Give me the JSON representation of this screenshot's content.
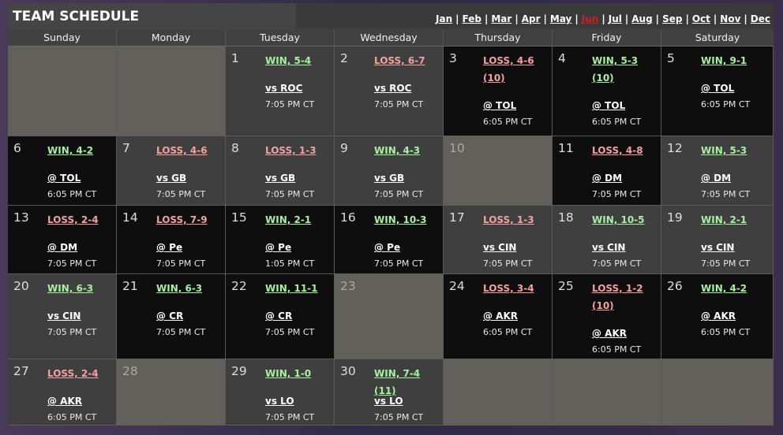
{
  "title": "TEAM SCHEDULE",
  "months": [
    "Jan",
    "Feb",
    "Mar",
    "Apr",
    "May",
    "Jun",
    "Jul",
    "Aug",
    "Sep",
    "Oct",
    "Nov",
    "Dec"
  ],
  "current_month": "Jun",
  "colors": {
    "win": "#a6f0a0",
    "loss": "#f5a0a0",
    "current_month": "#cc1f1f"
  },
  "weekdays": [
    "Sunday",
    "Monday",
    "Tuesday",
    "Wednesday",
    "Thursday",
    "Friday",
    "Saturday"
  ],
  "weeks": [
    [
      null,
      null,
      {
        "day": "1",
        "result": "WIN, 5-4",
        "type": "win",
        "opponent": "vs ROC",
        "time": "7:05 PM CT"
      },
      {
        "day": "2",
        "result": "LOSS, 6-7",
        "type": "loss",
        "opponent": "vs ROC",
        "time": "7:05 PM CT"
      },
      {
        "day": "3",
        "result": "LOSS, 4-6 (10)",
        "type": "loss",
        "opponent": "@ TOL",
        "time": "6:05 PM CT"
      },
      {
        "day": "4",
        "result": "WIN, 5-3 (10)",
        "type": "win",
        "opponent": "@ TOL",
        "time": "6:05 PM CT"
      },
      {
        "day": "5",
        "result": "WIN, 9-1",
        "type": "win",
        "opponent": "@ TOL",
        "time": "6:05 PM CT"
      }
    ],
    [
      {
        "day": "6",
        "result": "WIN, 4-2",
        "type": "win",
        "opponent": "@ TOL",
        "time": "6:05 PM CT"
      },
      {
        "day": "7",
        "result": "LOSS, 4-6",
        "type": "loss",
        "opponent": "vs GB",
        "time": "7:05 PM CT"
      },
      {
        "day": "8",
        "result": "LOSS, 1-3",
        "type": "loss",
        "opponent": "vs GB",
        "time": "7:05 PM CT"
      },
      {
        "day": "9",
        "result": "WIN, 4-3",
        "type": "win",
        "opponent": "vs GB",
        "time": "7:05 PM CT"
      },
      {
        "day": "10"
      },
      {
        "day": "11",
        "result": "LOSS, 4-8",
        "type": "loss",
        "opponent": "@ DM",
        "time": "7:05 PM CT"
      },
      {
        "day": "12",
        "result": "WIN, 5-3",
        "type": "win",
        "opponent": "@ DM",
        "time": "7:05 PM CT"
      }
    ],
    [
      {
        "day": "13",
        "result": "LOSS, 2-4",
        "type": "loss",
        "opponent": "@ DM",
        "time": "7:05 PM CT"
      },
      {
        "day": "14",
        "result": "LOSS, 7-9",
        "type": "loss",
        "opponent": "@ Pe",
        "time": "7:05 PM CT"
      },
      {
        "day": "15",
        "result": "WIN, 2-1",
        "type": "win",
        "opponent": "@ Pe",
        "time": "1:05 PM CT"
      },
      {
        "day": "16",
        "result": "WIN, 10-3",
        "type": "win",
        "opponent": "@ Pe",
        "time": "7:05 PM CT"
      },
      {
        "day": "17",
        "result": "LOSS, 1-3",
        "type": "loss",
        "opponent": "vs CIN",
        "time": "7:05 PM CT"
      },
      {
        "day": "18",
        "result": "WIN, 10-5",
        "type": "win",
        "opponent": "vs CIN",
        "time": "7:05 PM CT"
      },
      {
        "day": "19",
        "result": "WIN, 2-1",
        "type": "win",
        "opponent": "vs CIN",
        "time": "7:05 PM CT"
      }
    ],
    [
      {
        "day": "20",
        "result": "WIN, 6-3",
        "type": "win",
        "opponent": "vs CIN",
        "time": "7:05 PM CT"
      },
      {
        "day": "21",
        "result": "WIN, 6-3",
        "type": "win",
        "opponent": "@ CR",
        "time": "7:05 PM CT"
      },
      {
        "day": "22",
        "result": "WIN, 11-1",
        "type": "win",
        "opponent": "@ CR",
        "time": "7:05 PM CT"
      },
      {
        "day": "23"
      },
      {
        "day": "24",
        "result": "LOSS, 3-4",
        "type": "loss",
        "opponent": "@ AKR",
        "time": "6:05 PM CT"
      },
      {
        "day": "25",
        "result": "LOSS, 1-2 (10)",
        "type": "loss",
        "opponent": "@ AKR",
        "time": "6:05 PM CT"
      },
      {
        "day": "26",
        "result": "WIN, 4-2",
        "type": "win",
        "opponent": "@ AKR",
        "time": "6:05 PM CT"
      }
    ],
    [
      {
        "day": "27",
        "result": "LOSS, 2-4",
        "type": "loss",
        "opponent": "@ AKR",
        "time": "6:05 PM CT"
      },
      {
        "day": "28"
      },
      {
        "day": "29",
        "result": "WIN, 1-0",
        "type": "win",
        "opponent": "vs LO",
        "time": "7:05 PM CT"
      },
      {
        "day": "30",
        "result": "WIN, 7-4 (11)",
        "type": "win",
        "opponent": "vs LO",
        "time": "7:05 PM CT"
      },
      null,
      null,
      null
    ]
  ]
}
